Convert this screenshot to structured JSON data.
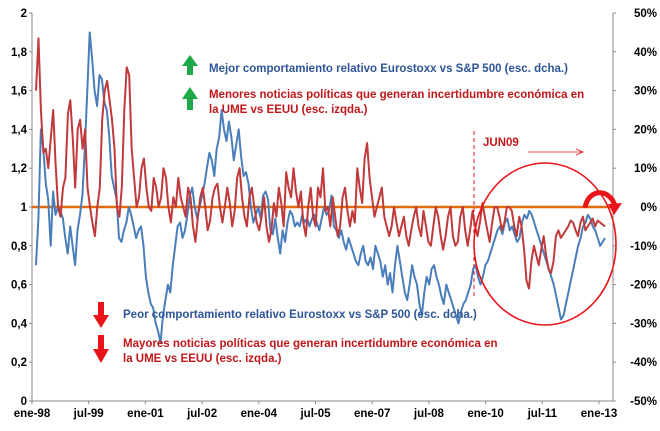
{
  "chart_data": {
    "type": "line",
    "x_ticks": [
      "ene-98",
      "jul-99",
      "ene-01",
      "jul-02",
      "ene-04",
      "jul-05",
      "ene-07",
      "jul-08",
      "ene-10",
      "jul-11",
      "ene-13"
    ],
    "y_left": {
      "ticks": [
        "0",
        "0,2",
        "0,4",
        "0,6",
        "0,8",
        "1",
        "1,2",
        "1,4",
        "1,6",
        "1,8",
        "2"
      ],
      "range": [
        0,
        2
      ]
    },
    "y_right": {
      "ticks": [
        "-50%",
        "-40%",
        "-30%",
        "-20%",
        "-10%",
        "0%",
        "10%",
        "20%",
        "30%",
        "40%",
        "50%"
      ],
      "range": [
        -50,
        50
      ]
    },
    "reference_line": {
      "axis": "left",
      "value": 1,
      "color": "#e36c09"
    },
    "series": [
      {
        "name": "Menores/Mayores noticias políticas que generan incertidumbre económica en la UME vs EEUU (esc. izqda.)",
        "axis": "left",
        "color": "#c0393b",
        "values": [
          1.6,
          1.87,
          1.5,
          1.28,
          1.3,
          1.2,
          1.35,
          1.5,
          1.22,
          1.0,
          0.95,
          1.1,
          1.15,
          1.48,
          1.55,
          1.35,
          1.1,
          1.4,
          1.45,
          1.3,
          1.4,
          1.1,
          1.0,
          0.92,
          0.85,
          1.0,
          1.1,
          1.45,
          1.6,
          1.65,
          1.55,
          1.45,
          1.3,
          1.0,
          0.95,
          1.1,
          1.5,
          1.72,
          1.68,
          1.3,
          1.15,
          1.0,
          1.05,
          1.2,
          1.25,
          1.1,
          1.0,
          0.98,
          1.15,
          1.1,
          1.0,
          1.05,
          1.2,
          1.15,
          1.0,
          0.92,
          1.05,
          1.0,
          1.15,
          1.05,
          1.0,
          0.95,
          1.1,
          1.05,
          0.9,
          0.82,
          0.95,
          1.05,
          1.1,
          1.0,
          0.88,
          0.93,
          1.05,
          1.1,
          1.12,
          1.0,
          0.92,
          1.0,
          1.1,
          1.02,
          0.9,
          0.98,
          1.15,
          1.2,
          1.05,
          0.95,
          0.9,
          1.05,
          1.1,
          1.0,
          0.92,
          0.88,
          0.95,
          1.05,
          0.9,
          0.82,
          0.88,
          1.02,
          0.95,
          1.1,
          1.02,
          0.9,
          1.18,
          1.1,
          1.05,
          1.2,
          1.08,
          1.0,
          1.08,
          0.92,
          0.85,
          1.0,
          1.1,
          0.95,
          0.9,
          1.1,
          1.05,
          1.2,
          0.98,
          1.0,
          0.9,
          1.05,
          0.95,
          0.85,
          0.9,
          1.05,
          1.1,
          0.98,
          0.9,
          0.98,
          0.92,
          1.2,
          1.1,
          1.02,
          1.25,
          1.33,
          1.15,
          1.05,
          0.95,
          1.0,
          1.05,
          1.1,
          0.95,
          0.9,
          0.85,
          0.9,
          1.0,
          0.92,
          0.85,
          0.9,
          0.95,
          0.85,
          0.8,
          0.88,
          0.95,
          1.0,
          0.9,
          0.85,
          0.98,
          0.9,
          0.82,
          0.8,
          0.9,
          1.0,
          0.95,
          0.85,
          0.78,
          0.85,
          0.95,
          1.0,
          0.85,
          0.8,
          0.82,
          0.95,
          1.0,
          0.88,
          0.8,
          0.88,
          0.98,
          0.9,
          0.85,
          0.92,
          1.02,
          0.95,
          0.88,
          0.82,
          0.92,
          1.0,
          1.0,
          0.95,
          0.88,
          0.92,
          1.0,
          1.0,
          0.98,
          0.9,
          0.85,
          0.95,
          0.9,
          0.78,
          0.62,
          0.58,
          0.72,
          0.8,
          0.75,
          0.7,
          0.78,
          0.85,
          0.75,
          0.68,
          0.66,
          0.72,
          0.85,
          0.88,
          0.84,
          0.86,
          0.88,
          0.9,
          0.93,
          0.92,
          0.88,
          0.85,
          0.92,
          0.95,
          0.88,
          0.9,
          0.92,
          0.94,
          0.9,
          0.93,
          0.92,
          0.91,
          0.9
        ]
      },
      {
        "name": "Mejor/Peor comportamiento relativo Eurostoxx vs S&P 500 (esc. dcha.)",
        "axis": "right",
        "color": "#4a7ebb",
        "values": [
          -15,
          -3,
          20,
          15,
          6,
          2,
          -10,
          4,
          -2,
          0,
          -1,
          -3,
          -8,
          -12,
          -5,
          -10,
          -15,
          -6,
          -2,
          3,
          15,
          30,
          45,
          38,
          30,
          26,
          34,
          33,
          27,
          25,
          18,
          8,
          5,
          2,
          -8,
          -9,
          -6,
          -4,
          0,
          -2,
          -5,
          -8,
          -6,
          -5,
          -10,
          -18,
          -22,
          -25,
          -26,
          -30,
          -32,
          -35,
          -28,
          -24,
          -20,
          -22,
          -15,
          -10,
          -5,
          -4,
          -8,
          -6,
          -2,
          3,
          5,
          0,
          -3,
          0,
          3,
          6,
          10,
          14,
          12,
          8,
          15,
          18,
          25,
          20,
          17,
          22,
          18,
          12,
          16,
          20,
          13,
          8,
          9,
          6,
          0,
          -4,
          -2,
          0,
          -3,
          3,
          4,
          2,
          -6,
          -7,
          -3,
          -8,
          -12,
          -6,
          -9,
          -4,
          -1,
          -2,
          -5,
          -4,
          -5,
          -2,
          -4,
          -3,
          -5,
          -3,
          -2,
          -4,
          -6,
          -3,
          0,
          -2,
          -1,
          3,
          -5,
          -6,
          -8,
          -6,
          -9,
          -11,
          -8,
          -10,
          -12,
          -14,
          -15,
          -12,
          -10,
          -14,
          -15,
          -13,
          -16,
          -10,
          -12,
          -14,
          -18,
          -15,
          -20,
          -17,
          -22,
          -15,
          -10,
          -14,
          -18,
          -22,
          -24,
          -20,
          -15,
          -18,
          -20,
          -25,
          -28,
          -22,
          -18,
          -20,
          -16,
          -15,
          -18,
          -20,
          -23,
          -25,
          -20,
          -22,
          -24,
          -26,
          -28,
          -30,
          -27,
          -25,
          -24,
          -22,
          -20,
          -16,
          -15,
          -18,
          -20,
          -18,
          -15,
          -14,
          -12,
          -10,
          -8,
          -6,
          -5,
          -7,
          -4,
          -3,
          -6,
          -5,
          -7,
          -9,
          -8,
          -4,
          -2,
          -3,
          -1,
          -2,
          -4,
          -6,
          -8,
          -10,
          -12,
          -14,
          -16,
          -18,
          -20,
          -23,
          -26,
          -29,
          -28,
          -25,
          -22,
          -19,
          -16,
          -13,
          -10,
          -8,
          -5,
          -4,
          -2,
          -3,
          -5,
          -6,
          -8,
          -10,
          -9,
          -8
        ]
      }
    ],
    "annotations": {
      "top_line1": "Mejor comportamiento relativo  Eurostoxx vs S&P 500 (esc. dcha.)",
      "top_line2a": "Menores noticias políticas que generan incertidumbre económica en",
      "top_line2b": "la UME vs EEUU (esc. izqda.)",
      "bottom_line1": "Peor comportamiento relativo  Eurostoxx vs S&P 500 (esc. dcha.)",
      "bottom_line2a": "Mayores noticias políticas que generan incertidumbre económica en",
      "bottom_line2b": "la UME vs EEUU (esc. izqda.)",
      "marker_label": "JUN09"
    },
    "colors": {
      "up_arrow": "#1ea84a",
      "down_arrow": "#e8141a",
      "ellipse": "#e8141a",
      "marker": "#e8141a"
    }
  }
}
